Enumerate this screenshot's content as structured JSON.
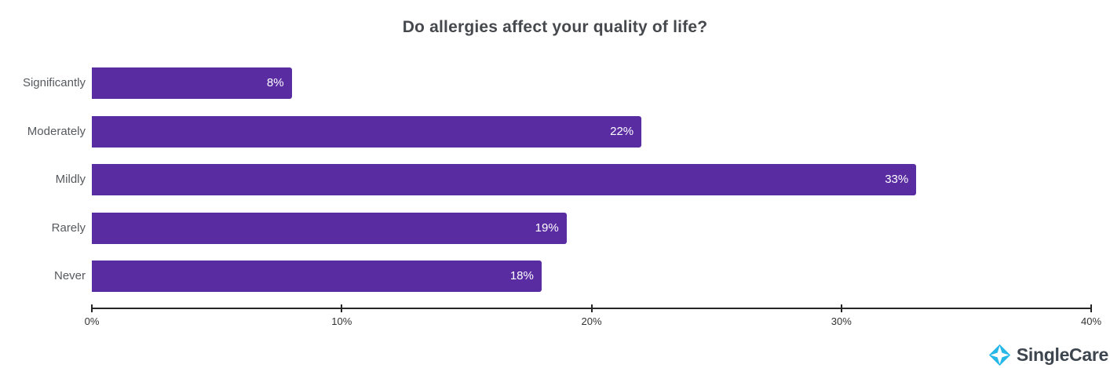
{
  "chart_data": {
    "type": "bar",
    "orientation": "horizontal",
    "title": "Do allergies affect your quality of life?",
    "categories": [
      "Significantly",
      "Moderately",
      "Mildly",
      "Rarely",
      "Never"
    ],
    "values": [
      8,
      22,
      33,
      19,
      18
    ],
    "value_labels": [
      "8%",
      "22%",
      "33%",
      "19%",
      "18%"
    ],
    "x_ticks": [
      "0%",
      "10%",
      "20%",
      "30%",
      "40%"
    ],
    "xlim": [
      0,
      40
    ],
    "xlabel": "",
    "ylabel": "",
    "grid": false,
    "legend_position": "none",
    "bar_color": "#5a2ca2",
    "value_label_color": "#ffffff",
    "axis_color": "#262626",
    "title_color": "#45484d",
    "category_label_color": "#565a5e"
  },
  "branding": {
    "logo_text": "SingleCare",
    "logo_icon": "singlecare-diamond-icon",
    "logo_icon_color": "#27b8e8",
    "logo_text_color": "#3d454e"
  }
}
